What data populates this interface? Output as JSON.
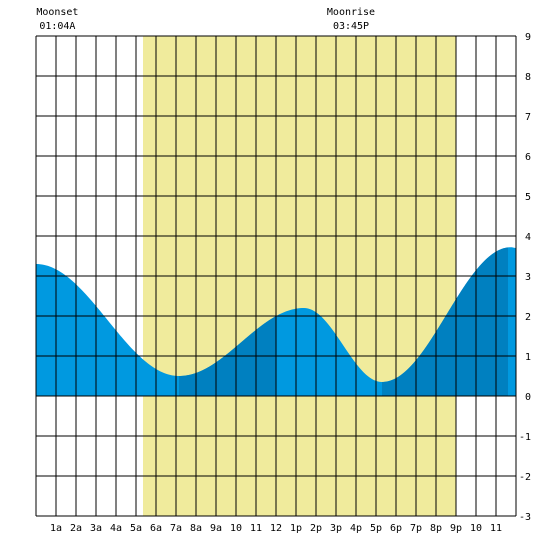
{
  "chart_data": {
    "type": "area",
    "title": "",
    "xlabel": "",
    "ylabel": "",
    "x_tick_labels": [
      "1a",
      "2a",
      "3a",
      "4a",
      "5a",
      "6a",
      "7a",
      "8a",
      "9a",
      "10",
      "11",
      "12",
      "1p",
      "2p",
      "3p",
      "4p",
      "5p",
      "6p",
      "7p",
      "8p",
      "9p",
      "10",
      "11"
    ],
    "x_tick_hours": [
      1,
      2,
      3,
      4,
      5,
      6,
      7,
      8,
      9,
      10,
      11,
      12,
      13,
      14,
      15,
      16,
      17,
      18,
      19,
      20,
      21,
      22,
      23
    ],
    "xlim_hours": [
      0,
      24
    ],
    "ylim": [
      -3,
      9
    ],
    "y_ticks": [
      -3,
      -2,
      -1,
      0,
      1,
      2,
      3,
      4,
      5,
      6,
      7,
      8,
      9
    ],
    "grid": true,
    "daylight_hours": [
      5.35,
      21.0
    ],
    "tide_extremes": [
      {
        "hour": 0.0,
        "height": 3.3,
        "kind": "start"
      },
      {
        "hour": 7.15,
        "height": 0.5,
        "kind": "low"
      },
      {
        "hour": 13.4,
        "height": 2.2,
        "kind": "high"
      },
      {
        "hour": 17.3,
        "height": 0.35,
        "kind": "low"
      },
      {
        "hour": 23.75,
        "height": 3.72,
        "kind": "high"
      },
      {
        "hour": 24.0,
        "height": 3.7,
        "kind": "end"
      }
    ],
    "dark_segments": [
      {
        "from_hour": 7.15,
        "to_hour": 12.0
      },
      {
        "from_hour": 17.3,
        "to_hour": 23.6
      }
    ],
    "moon_events": [
      {
        "label": "Moonset",
        "time": "01:04A",
        "hour": 1.07
      },
      {
        "label": "Moonrise",
        "time": "03:45P",
        "hour": 15.75
      }
    ],
    "colors": {
      "daylight": "#f0eb9c",
      "tide": "#0099e0",
      "tide_dark": "#0080c0",
      "grid": "#000000",
      "background": "#ffffff"
    }
  }
}
